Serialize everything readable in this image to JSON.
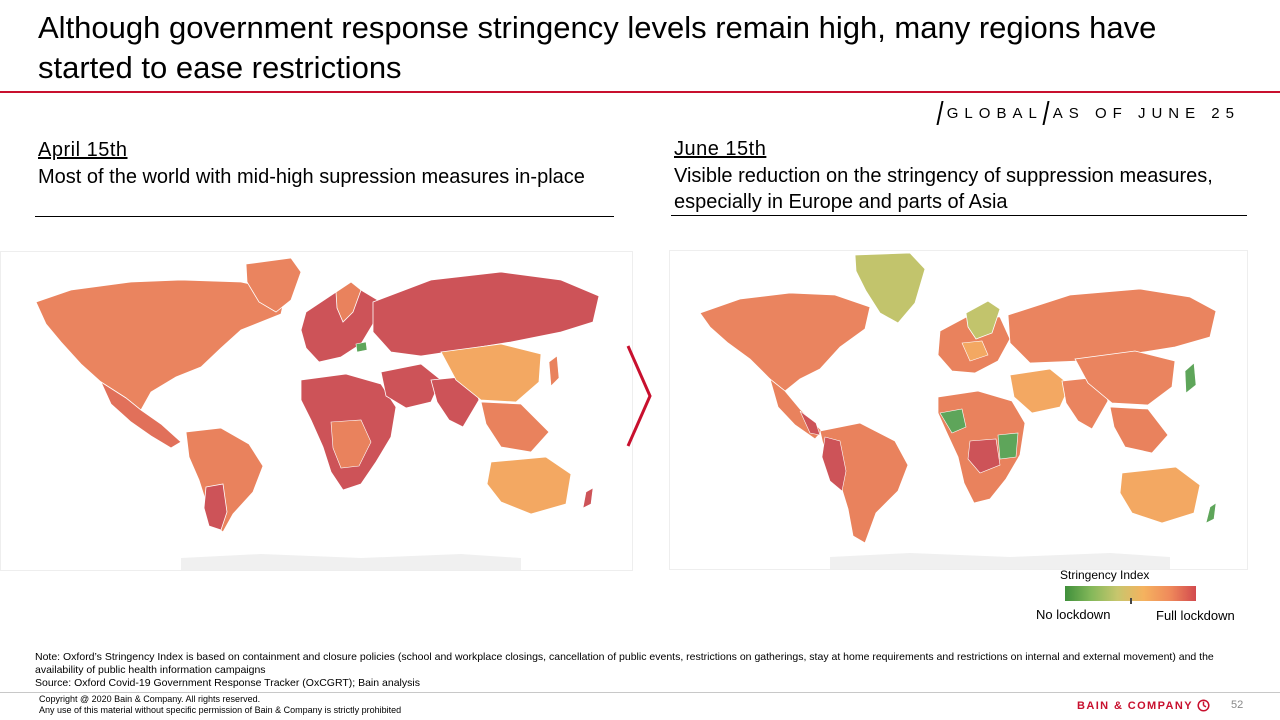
{
  "title": "Although government response stringency levels remain high, many regions have started to ease restrictions",
  "tag": {
    "scope": "GLOBAL",
    "as_of": "AS OF JUNE 25"
  },
  "left_panel": {
    "date": "April 15th",
    "description": "Most of the world with mid-high supression measures in-place"
  },
  "right_panel": {
    "date": "June 15th",
    "description": "Visible reduction on the stringency of suppression measures, especially in Europe and parts of Asia"
  },
  "legend": {
    "title": "Stringency Index",
    "min_label": "No lockdown",
    "max_label": "Full lockdown",
    "scale_colors": [
      "#3f8f3b",
      "#84b85a",
      "#c7c66d",
      "#f5b25f",
      "#ef8a5b",
      "#d24a4e"
    ]
  },
  "colors": {
    "accent": "#c8102e",
    "high": "#cd5358",
    "mid_high": "#e9825d",
    "mid": "#f3a862",
    "low": "#c2c46c",
    "very_low": "#5ea55a"
  },
  "note": "Note: Oxford’s Stringency Index is based on containment and closure policies (school and workplace closings, cancellation of public events, restrictions on gatherings, stay at home requirements and restrictions on internal and external movement) and the availability of public health information campaigns",
  "source": "Source: Oxford Covid-19 Government Response Tracker (OxCGRT); Bain analysis",
  "copyright_line1": "Copyright @ 2020 Bain & Company. All rights reserved.",
  "copyright_line2": "Any use of this material without specific permission of Bain & Company is strictly prohibited",
  "brand": "BAIN & COMPANY",
  "page_number": "52"
}
